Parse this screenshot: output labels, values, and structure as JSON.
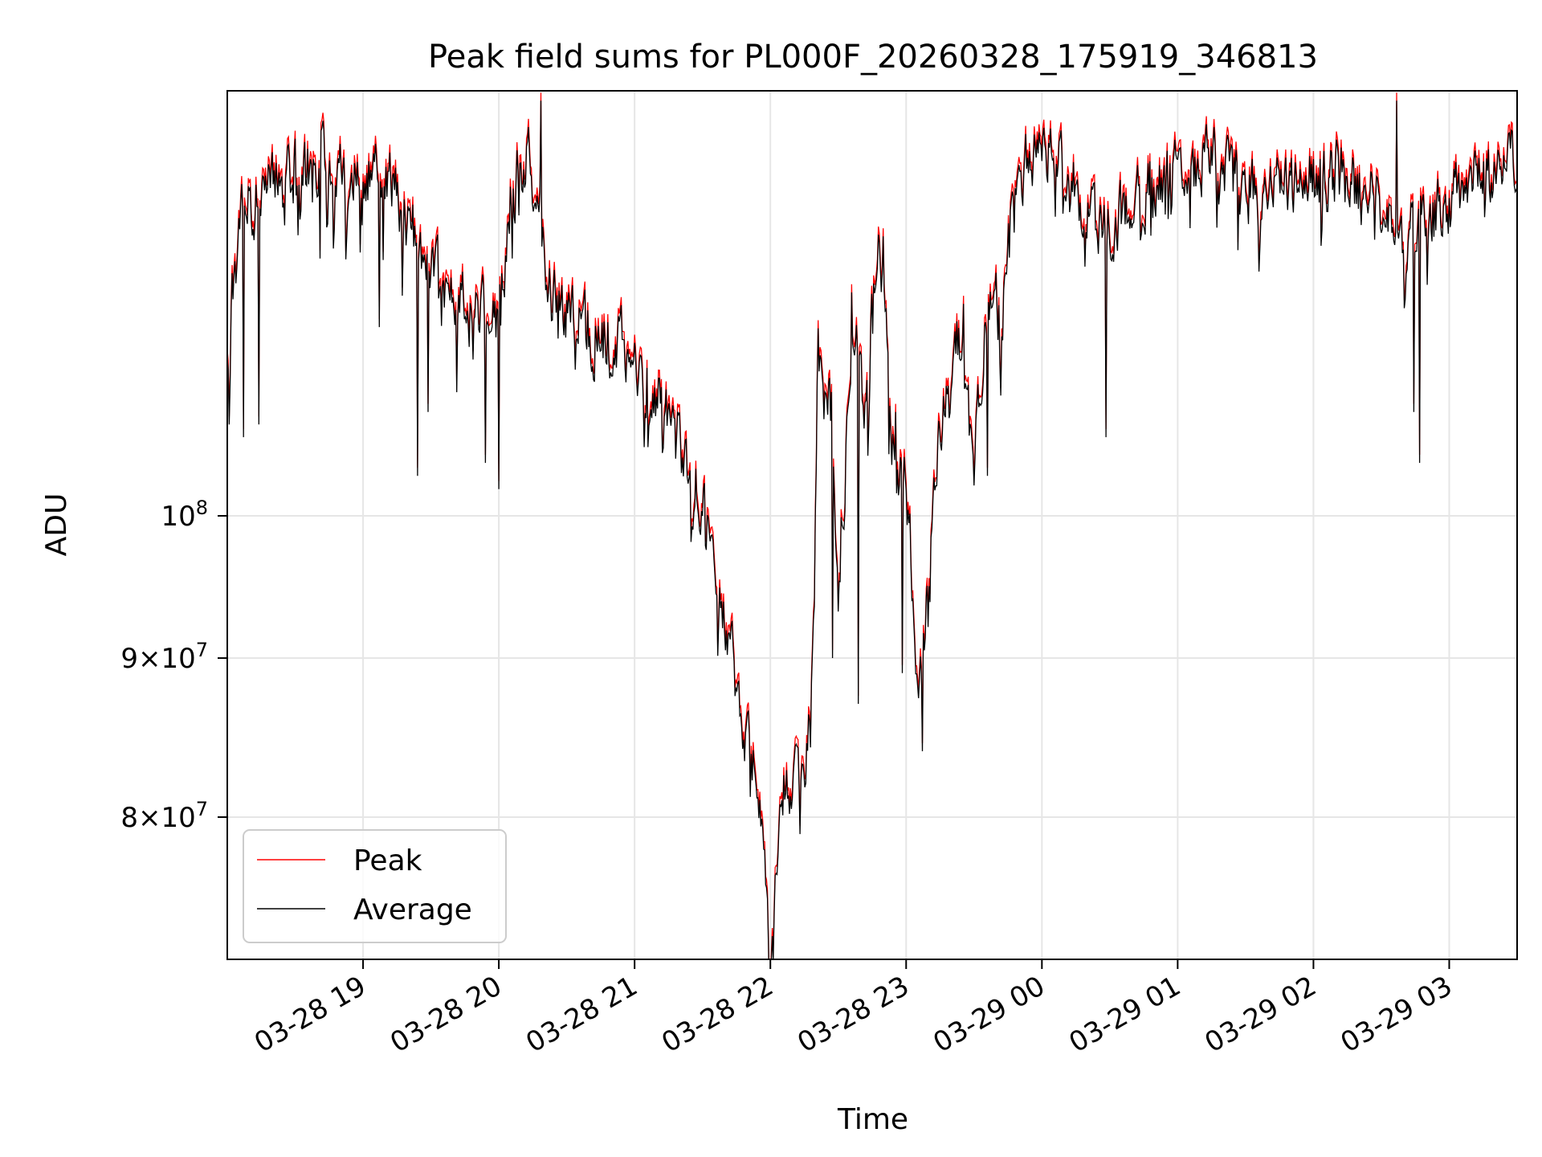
{
  "chart_data": {
    "type": "line",
    "title": "Peak field sums for PL000F_20260328_175919_346813",
    "xlabel": "Time",
    "ylabel": "ADU",
    "yscale": "log",
    "ylim": [
      72000000,
      137000000
    ],
    "x_unit": "hours since 03-28 18:00",
    "xlim": [
      0.0,
      9.5
    ],
    "grid": true,
    "legend_position": "lower-left",
    "x_ticks": [
      {
        "label": "03-28 19",
        "value": 1
      },
      {
        "label": "03-28 20",
        "value": 2
      },
      {
        "label": "03-28 21",
        "value": 3
      },
      {
        "label": "03-28 22",
        "value": 4
      },
      {
        "label": "03-28 23",
        "value": 5
      },
      {
        "label": "03-29 00",
        "value": 6
      },
      {
        "label": "03-29 01",
        "value": 7
      },
      {
        "label": "03-29 02",
        "value": 8
      },
      {
        "label": "03-29 03",
        "value": 9
      }
    ],
    "y_ticks": [
      {
        "mantissa": "",
        "exponent": "8",
        "value": 100000000
      },
      {
        "mantissa": "9",
        "exponent": "7",
        "value": 90000000
      },
      {
        "mantissa": "8",
        "exponent": "7",
        "value": 80000000
      }
    ],
    "y_tick_times": "×",
    "y_tick_base": "10",
    "series": [
      {
        "name": "Peak",
        "color": "#ff0000",
        "offset_ratio": 1.006
      },
      {
        "name": "Average",
        "color": "#000000",
        "offset_ratio": 1.0
      }
    ],
    "base_profile": {
      "x": [
        0.0,
        0.1,
        0.3,
        0.5,
        0.7,
        0.9,
        1.2,
        1.4,
        1.6,
        1.8,
        2.0,
        2.1,
        2.2,
        2.3,
        2.35,
        2.45,
        2.6,
        2.8,
        3.0,
        3.2,
        3.4,
        3.6,
        3.8,
        3.95,
        4.0,
        4.05,
        4.1,
        4.25,
        4.3,
        4.35,
        4.45,
        4.5,
        4.6,
        4.7,
        4.8,
        4.9,
        5.0,
        5.1,
        5.2,
        5.3,
        5.4,
        5.5,
        5.6,
        5.7,
        5.75,
        5.8,
        5.9,
        6.0,
        6.2,
        6.4,
        6.6,
        6.8,
        7.0,
        7.3,
        7.6,
        7.9,
        8.2,
        8.5,
        8.65,
        8.75,
        8.9,
        9.1,
        9.3,
        9.5
      ],
      "y": [
        114000000,
        125000000,
        127000000,
        129000000,
        130000000,
        128000000,
        129000000,
        122000000,
        118000000,
        116000000,
        118000000,
        128000000,
        131000000,
        127000000,
        119000000,
        117000000,
        115000000,
        114000000,
        113000000,
        108000000,
        104000000,
        97000000,
        86000000,
        80000000,
        74000000,
        78000000,
        81000000,
        83000000,
        86000000,
        112000000,
        108000000,
        95000000,
        115000000,
        108000000,
        125000000,
        105000000,
        103000000,
        87000000,
        100000000,
        112000000,
        114000000,
        103000000,
        118000000,
        116000000,
        121000000,
        128000000,
        130000000,
        131000000,
        128000000,
        124000000,
        125000000,
        128000000,
        129000000,
        130000000,
        127000000,
        128000000,
        129000000,
        126000000,
        122000000,
        125000000,
        125000000,
        128000000,
        129000000,
        130000000
      ]
    },
    "features": [
      {
        "x": 0.12,
        "y": 106000000
      },
      {
        "x": 0.23,
        "y": 107000000
      },
      {
        "x": 0.68,
        "y": 121000000
      },
      {
        "x": 1.12,
        "y": 115000000
      },
      {
        "x": 1.4,
        "y": 103000000
      },
      {
        "x": 1.48,
        "y": 108000000
      },
      {
        "x": 1.9,
        "y": 104000000
      },
      {
        "x": 2.0,
        "y": 102000000
      },
      {
        "x": 2.1,
        "y": 121000000
      },
      {
        "x": 2.31,
        "y": 136000000
      },
      {
        "x": 3.2,
        "y": 110000000
      },
      {
        "x": 3.5,
        "y": 100000000
      },
      {
        "x": 4.02,
        "y": 72000000
      },
      {
        "x": 4.22,
        "y": 79000000
      },
      {
        "x": 4.46,
        "y": 90000000
      },
      {
        "x": 4.6,
        "y": 118000000
      },
      {
        "x": 4.65,
        "y": 87000000
      },
      {
        "x": 4.83,
        "y": 123000000
      },
      {
        "x": 4.92,
        "y": 108000000
      },
      {
        "x": 4.97,
        "y": 89000000
      },
      {
        "x": 5.12,
        "y": 84000000
      },
      {
        "x": 5.42,
        "y": 117000000
      },
      {
        "x": 5.6,
        "y": 103000000
      },
      {
        "x": 5.69,
        "y": 112000000
      },
      {
        "x": 6.47,
        "y": 106000000
      },
      {
        "x": 8.61,
        "y": 136000000
      },
      {
        "x": 8.74,
        "y": 108000000
      },
      {
        "x": 8.78,
        "y": 104000000
      }
    ],
    "noise": {
      "n": 1350,
      "seed": 20260328,
      "amplitude": 0.022
    }
  }
}
